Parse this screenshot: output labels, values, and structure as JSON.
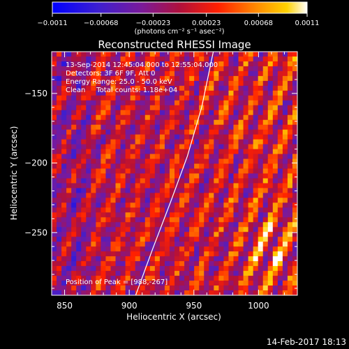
{
  "chart_data": {
    "type": "heatmap",
    "title": "Reconstructed RHESSI Image",
    "xlabel": "Heliocentric X (arcsec)",
    "ylabel": "Heliocentric Y (arcsec)",
    "xlim": [
      840,
      1030
    ],
    "ylim": [
      -295,
      -120
    ],
    "x_ticks": [
      850,
      900,
      950,
      1000
    ],
    "y_ticks": [
      -150,
      -200,
      -250
    ],
    "x_tick_labels": [
      "850",
      "900",
      "950",
      "1000"
    ],
    "y_tick_labels": [
      "−150",
      "−200",
      "−250"
    ],
    "colorbar": {
      "min": -0.0011,
      "max": 0.0011,
      "ticks": [
        -0.0011,
        -0.00068,
        -0.00023,
        0.00023,
        0.00068,
        0.0011
      ],
      "tick_labels": [
        "−0.0011",
        "−0.00068",
        "−0.00023",
        "0.00023",
        "0.00068",
        "0.0011"
      ],
      "unit_label": "(photons cm⁻² s⁻¹ asec⁻²)"
    },
    "limb_curve": {
      "x": [
        905,
        918,
        932,
        945,
        956,
        965
      ],
      "y": [
        -295,
        -262,
        -228,
        -195,
        -160,
        -120
      ]
    },
    "peak": {
      "x": 988,
      "y": -267
    },
    "info_lines": [
      "13-Sep-2014 12:45:04.000 to 12:55:04.000",
      "Detectors: 3F 6F 9F, Att 0",
      "Energy Range: 25.0 - 50.0 keV",
      "Clean     Total counts: 1.18e+04"
    ],
    "peak_label": "Position of Peak = [988,-267]",
    "grid": false
  },
  "footer": {
    "timestamp": "14-Feb-2017 18:13"
  }
}
